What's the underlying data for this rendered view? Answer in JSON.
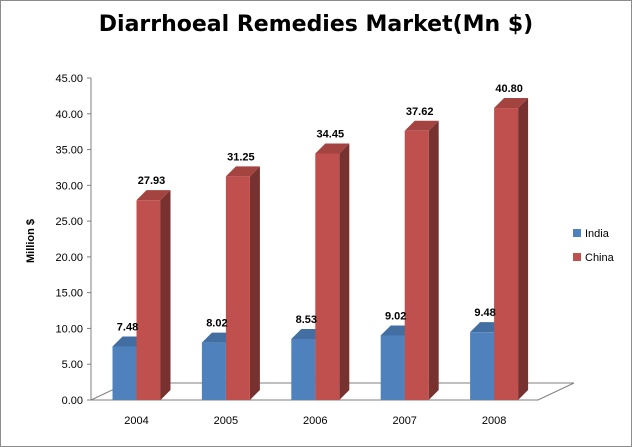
{
  "chart_data": {
    "type": "bar",
    "title": "Diarrhoeal Remedies Market(Mn $)",
    "ylabel": "Million $",
    "xlabel": "",
    "categories": [
      "2004",
      "2005",
      "2006",
      "2007",
      "2008"
    ],
    "series": [
      {
        "name": "India",
        "values": [
          7.48,
          8.02,
          8.53,
          9.02,
          9.48
        ],
        "color": "#4f81bd"
      },
      {
        "name": "China",
        "values": [
          27.93,
          31.25,
          34.45,
          37.62,
          40.8
        ],
        "color": "#c0504d"
      }
    ],
    "ylim": [
      0,
      45
    ],
    "yticks": [
      "0.00",
      "5.00",
      "10.00",
      "15.00",
      "20.00",
      "25.00",
      "30.00",
      "35.00",
      "40.00",
      "45.00"
    ],
    "data_labels": [
      [
        "7.48",
        "8.02",
        "8.53",
        "9.02",
        "9.48"
      ],
      [
        "27.93",
        "31.25",
        "34.45",
        "37.62",
        "40.80"
      ]
    ],
    "legend_position": "right",
    "grid": false,
    "style": "3d-column"
  }
}
